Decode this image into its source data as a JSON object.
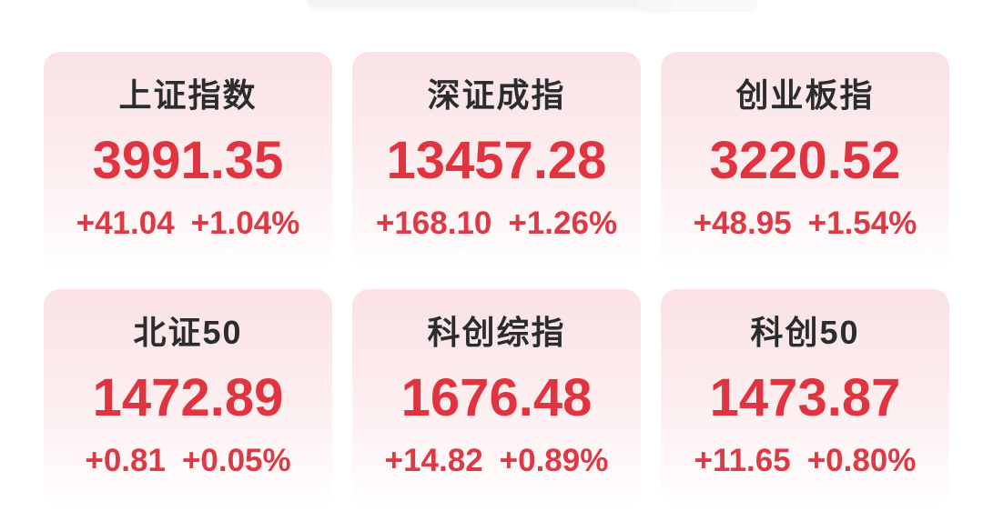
{
  "panel": {
    "background": "#ffffff",
    "description_labels": {}
  },
  "colors": {
    "card_top": "#fae2e5",
    "card_mid": "#fcecee",
    "card_bottom": "#fffefe",
    "value_red": "#e03540",
    "change_red": "#dc3a45",
    "title_color": "#2b2c2e"
  },
  "indices": [
    {
      "name": "上证指数",
      "value": "3991.35",
      "change": "+41.04",
      "change_pct": "+1.04%"
    },
    {
      "name": "深证成指",
      "value": "13457.28",
      "change": "+168.10",
      "change_pct": "+1.26%"
    },
    {
      "name": "创业板指",
      "value": "3220.52",
      "change": "+48.95",
      "change_pct": "+1.54%"
    },
    {
      "name": "北证50",
      "value": "1472.89",
      "change": "+0.81",
      "change_pct": "+0.05%"
    },
    {
      "name": "科创综指",
      "value": "1676.48",
      "change": "+14.82",
      "change_pct": "+0.89%"
    },
    {
      "name": "科创50",
      "value": "1473.87",
      "change": "+11.65",
      "change_pct": "+0.80%"
    }
  ]
}
